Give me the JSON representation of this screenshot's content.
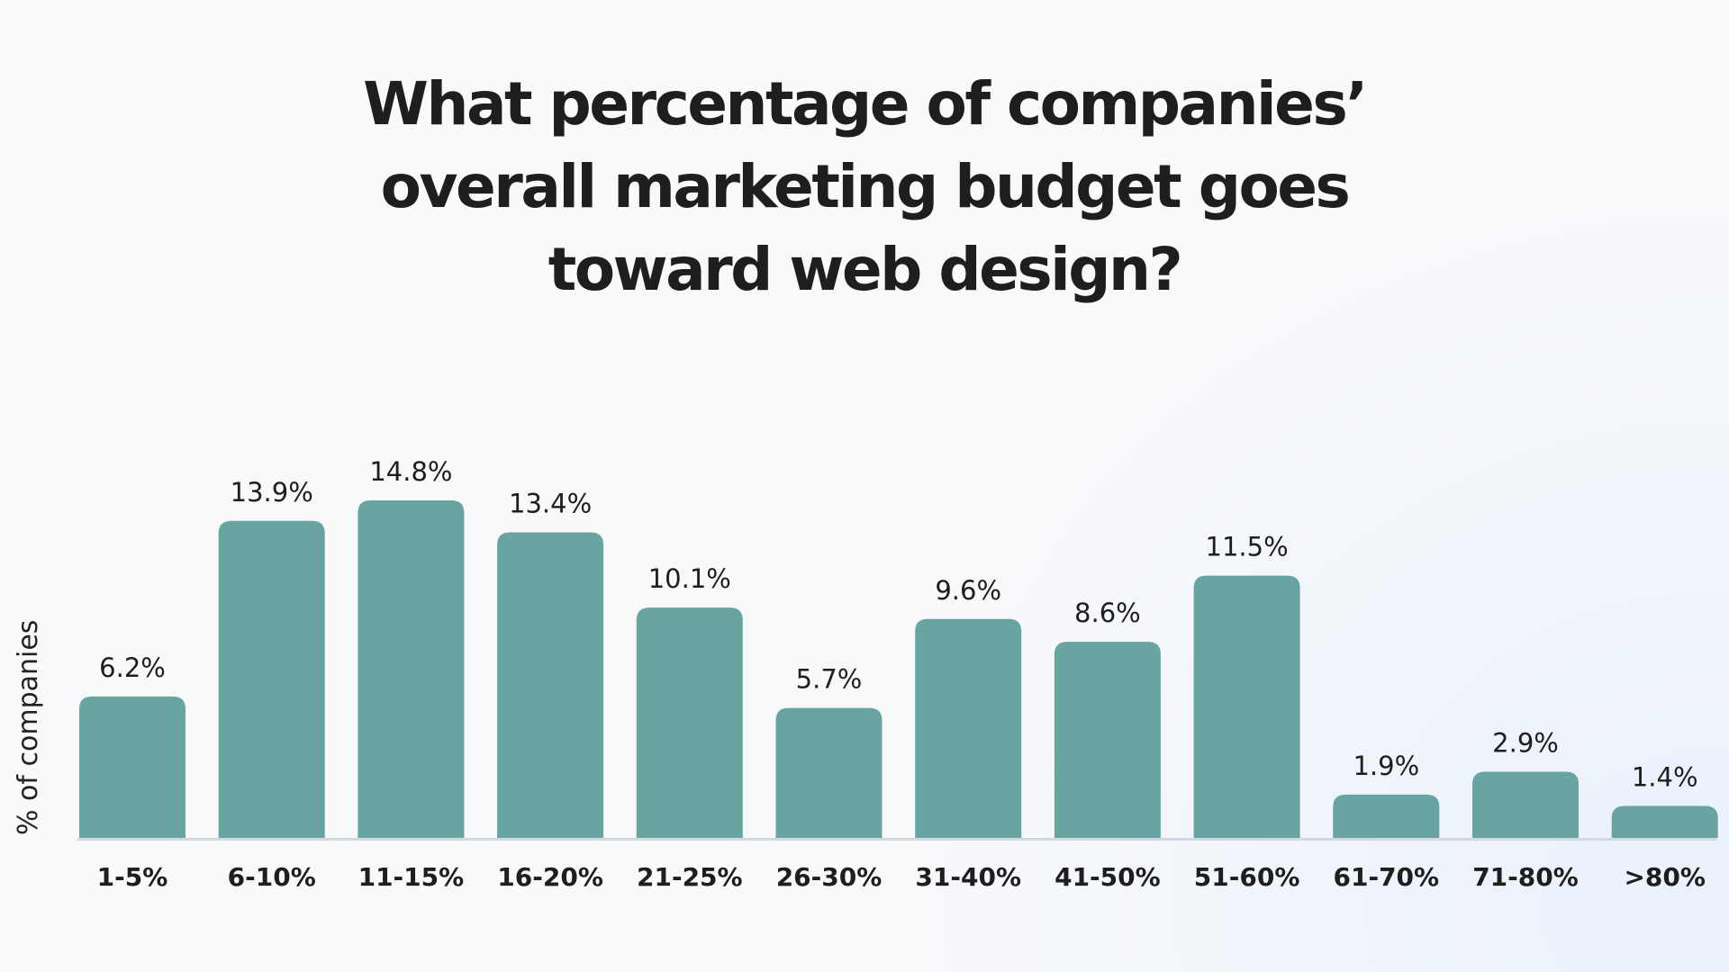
{
  "chart_data": {
    "type": "bar",
    "title": [
      "What percentage of companies’",
      "overall marketing budget goes",
      "toward web design?"
    ],
    "xlabel": "",
    "ylabel": "% of companies",
    "categories": [
      "1-5%",
      "6-10%",
      "11-15%",
      "16-20%",
      "21-25%",
      "26-30%",
      "31-40%",
      "41-50%",
      "51-60%",
      "61-70%",
      "71-80%",
      ">80%"
    ],
    "values": [
      6.2,
      13.9,
      14.8,
      13.4,
      10.1,
      5.7,
      9.6,
      8.6,
      11.5,
      1.9,
      2.9,
      1.4
    ],
    "data_labels": [
      "6.2%",
      "13.9%",
      "14.8%",
      "13.4%",
      "10.1%",
      "5.7%",
      "9.6%",
      "8.6%",
      "11.5%",
      "1.9%",
      "2.9%",
      "1.4%"
    ],
    "ylim": [
      0,
      14.8
    ],
    "grid": false,
    "legend": "none",
    "colors": {
      "bar": "#68a5a2",
      "baseline": "#d3d8de",
      "text": "#1e1e1e"
    }
  }
}
